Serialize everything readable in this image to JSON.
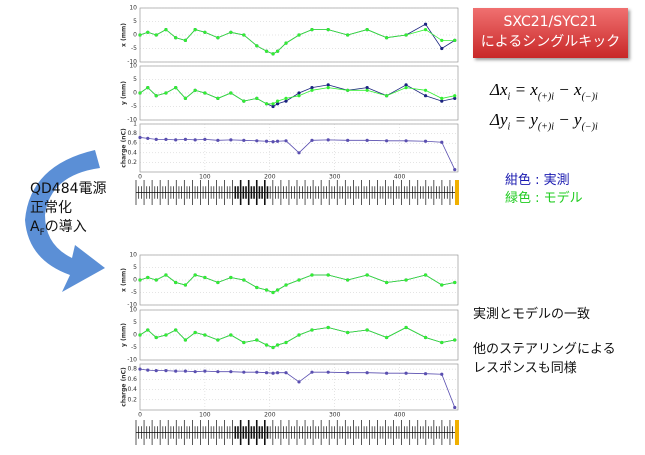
{
  "chart_data": [
    {
      "type": "line",
      "ylabel": "x (mm)",
      "x": [
        0,
        12,
        25,
        40,
        55,
        70,
        85,
        100,
        120,
        140,
        160,
        180,
        195,
        205,
        212,
        225,
        245,
        265,
        290,
        320,
        350,
        380,
        410,
        440,
        465,
        485
      ],
      "xlim": [
        0,
        490
      ],
      "ylim": [
        -10,
        10
      ],
      "yticks": [
        -10,
        -5,
        0,
        5,
        10
      ],
      "series": [
        {
          "color": "#1a237e",
          "values": [
            0,
            1,
            0,
            2,
            -1,
            -2,
            2,
            1,
            -1,
            1,
            0,
            -4,
            -6,
            -7,
            -6,
            -3,
            0,
            2,
            2,
            0,
            2,
            -1,
            0,
            4,
            -5,
            -2
          ]
        },
        {
          "color": "#33ee33",
          "values": [
            0,
            1,
            0,
            2,
            -1,
            -2,
            2,
            1,
            -1,
            1,
            0,
            -4,
            -6,
            -7,
            -6,
            -3,
            0,
            2,
            2,
            0,
            2,
            -1,
            0,
            2,
            -2,
            -2
          ]
        }
      ]
    },
    {
      "type": "line",
      "ylabel": "y (mm)",
      "x": [
        0,
        12,
        25,
        40,
        55,
        70,
        85,
        100,
        120,
        140,
        160,
        180,
        195,
        205,
        212,
        225,
        245,
        265,
        290,
        320,
        350,
        380,
        410,
        440,
        465,
        485
      ],
      "xlim": [
        0,
        490
      ],
      "ylim": [
        -10,
        10
      ],
      "yticks": [
        -10,
        -5,
        0,
        5,
        10
      ],
      "series": [
        {
          "color": "#1a237e",
          "values": [
            0,
            2,
            -1,
            0,
            2,
            -2,
            1,
            0,
            -2,
            0,
            -3,
            -2,
            -4,
            -5,
            -4,
            -3,
            0,
            2,
            3,
            1,
            2,
            -1,
            3,
            -1,
            -3,
            -2
          ]
        },
        {
          "color": "#33ee33",
          "values": [
            0,
            2,
            -1,
            0,
            2,
            -2,
            1,
            0,
            -2,
            0,
            -3,
            -2,
            -4,
            -4,
            -3,
            -2,
            -1,
            1,
            2,
            1,
            1,
            -1,
            2,
            1,
            -2,
            -1
          ]
        }
      ]
    },
    {
      "type": "line",
      "ylabel": "charge (nC)",
      "x": [
        0,
        12,
        25,
        40,
        55,
        70,
        85,
        100,
        120,
        140,
        160,
        180,
        195,
        205,
        212,
        225,
        245,
        265,
        290,
        320,
        350,
        380,
        410,
        440,
        465,
        485
      ],
      "xlim": [
        0,
        490
      ],
      "ylim": [
        0,
        1
      ],
      "yticks": [
        0.2,
        0.4,
        0.6,
        0.8,
        1
      ],
      "xticks": [
        0,
        100,
        200,
        300,
        400
      ],
      "series": [
        {
          "color": "#5a4fb0",
          "values": [
            0.72,
            0.7,
            0.68,
            0.68,
            0.67,
            0.68,
            0.67,
            0.68,
            0.66,
            0.67,
            0.66,
            0.65,
            0.64,
            0.63,
            0.64,
            0.65,
            0.4,
            0.66,
            0.67,
            0.66,
            0.66,
            0.65,
            0.65,
            0.64,
            0.62,
            0.05
          ]
        }
      ]
    },
    {
      "type": "line",
      "ylabel": "x (mm)",
      "x": [
        0,
        12,
        25,
        40,
        55,
        70,
        85,
        100,
        120,
        140,
        160,
        180,
        195,
        205,
        212,
        225,
        245,
        265,
        290,
        320,
        350,
        380,
        410,
        440,
        465,
        485
      ],
      "xlim": [
        0,
        490
      ],
      "ylim": [
        -10,
        10
      ],
      "yticks": [
        -10,
        -5,
        0,
        5,
        10
      ],
      "series": [
        {
          "color": "#1a237e",
          "values": [
            0,
            1,
            0,
            2,
            -1,
            -2,
            2,
            1,
            -1,
            1,
            0,
            -3,
            -4,
            -5,
            -4,
            -2,
            0,
            2,
            2,
            0,
            2,
            -1,
            0,
            2,
            -2,
            -1
          ]
        },
        {
          "color": "#33ee33",
          "values": [
            0,
            1,
            0,
            2,
            -1,
            -2,
            2,
            1,
            -1,
            1,
            0,
            -3,
            -4,
            -5,
            -4,
            -2,
            0,
            2,
            2,
            0,
            2,
            -1,
            0,
            2,
            -2,
            -1
          ]
        }
      ]
    },
    {
      "type": "line",
      "ylabel": "y (mm)",
      "x": [
        0,
        12,
        25,
        40,
        55,
        70,
        85,
        100,
        120,
        140,
        160,
        180,
        195,
        205,
        212,
        225,
        245,
        265,
        290,
        320,
        350,
        380,
        410,
        440,
        465,
        485
      ],
      "xlim": [
        0,
        490
      ],
      "ylim": [
        -10,
        10
      ],
      "yticks": [
        -10,
        -5,
        0,
        5,
        10
      ],
      "series": [
        {
          "color": "#1a237e",
          "values": [
            0,
            2,
            -1,
            0,
            2,
            -2,
            1,
            0,
            -2,
            0,
            -3,
            -2,
            -4,
            -5,
            -4,
            -3,
            0,
            2,
            3,
            1,
            2,
            -1,
            3,
            -1,
            -3,
            -2
          ]
        },
        {
          "color": "#33ee33",
          "values": [
            0,
            2,
            -1,
            0,
            2,
            -2,
            1,
            0,
            -2,
            0,
            -3,
            -2,
            -4,
            -5,
            -4,
            -3,
            0,
            2,
            3,
            1,
            2,
            -1,
            3,
            -1,
            -3,
            -2
          ]
        }
      ]
    },
    {
      "type": "line",
      "ylabel": "charge (nC)",
      "x": [
        0,
        12,
        25,
        40,
        55,
        70,
        85,
        100,
        120,
        140,
        160,
        180,
        195,
        205,
        212,
        225,
        245,
        265,
        290,
        320,
        350,
        380,
        410,
        440,
        465,
        485
      ],
      "xlim": [
        0,
        490
      ],
      "ylim": [
        0,
        0.9
      ],
      "yticks": [
        0.2,
        0.4,
        0.6,
        0.8
      ],
      "xticks": [
        0,
        100,
        200,
        300,
        400
      ],
      "series": [
        {
          "color": "#5a4fb0",
          "values": [
            0.8,
            0.78,
            0.77,
            0.77,
            0.76,
            0.76,
            0.75,
            0.76,
            0.75,
            0.75,
            0.74,
            0.74,
            0.73,
            0.72,
            0.73,
            0.73,
            0.55,
            0.74,
            0.74,
            0.73,
            0.73,
            0.72,
            0.72,
            0.71,
            0.7,
            0.05
          ]
        }
      ]
    }
  ],
  "kick_box": [
    "SXC21/SYC21",
    "によるシングルキック"
  ],
  "formulas": [
    [
      {
        "text": "Δx",
        "sub": "i"
      },
      {
        "text": " = "
      },
      {
        "text": "x",
        "sub": "(+)i"
      },
      {
        "text": " − "
      },
      {
        "text": "x",
        "sub": "(−)i"
      }
    ],
    [
      {
        "text": "Δy",
        "sub": "i"
      },
      {
        "text": " = "
      },
      {
        "text": "y",
        "sub": "(+)i"
      },
      {
        "text": " − "
      },
      {
        "text": "y",
        "sub": "(−)i"
      }
    ]
  ],
  "legend": [
    {
      "label": "紺色 : 実測",
      "color": "#1a1ab0"
    },
    {
      "label": "緑色 : モデル",
      "color": "#22cc22"
    }
  ],
  "arrow_text": {
    "line1": "QD484電源",
    "line2": "正常化",
    "line3": "A",
    "line3_sub": "F",
    "line3_tail": "の導入"
  },
  "notes": [
    "実測とモデルの一致",
    "他のステアリングによる",
    "レスポンスも同様"
  ]
}
